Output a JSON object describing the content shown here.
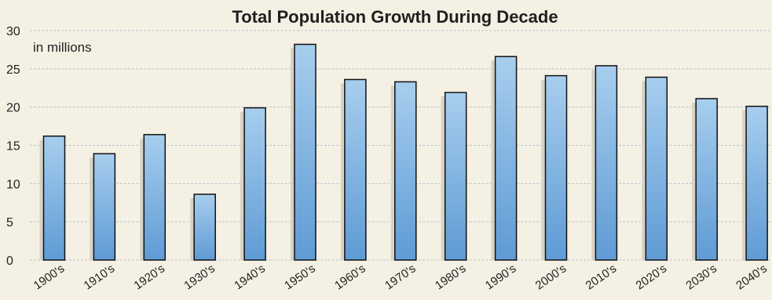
{
  "chart_data": {
    "type": "bar",
    "title": "Total Population Growth During Decade",
    "unit_label": "in millions",
    "categories": [
      "1900's",
      "1910's",
      "1920's",
      "1930's",
      "1940's",
      "1950's",
      "1960's",
      "1970's",
      "1980's",
      "1990's",
      "2000's",
      "2010's",
      "2020's",
      "2030's",
      "2040's"
    ],
    "values": [
      16.2,
      13.9,
      16.4,
      8.6,
      19.9,
      28.2,
      23.6,
      23.3,
      21.9,
      26.6,
      24.1,
      25.4,
      23.9,
      21.1,
      20.1
    ],
    "yticks": [
      0,
      5,
      10,
      15,
      20,
      25,
      30
    ],
    "ylim": [
      0,
      30
    ],
    "grid": true,
    "colors": {
      "background": "#f4f0e4",
      "bar_top": "#a7ceee",
      "bar_bottom": "#5f9bd5",
      "shadow": "#d6d2c6",
      "grid": "#b9c3cf"
    }
  }
}
